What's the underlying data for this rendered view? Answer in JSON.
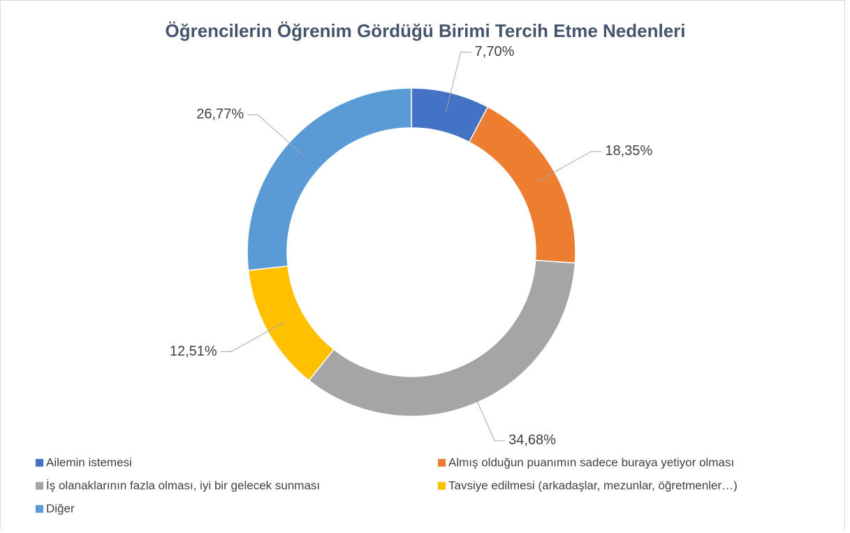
{
  "chart_data": {
    "type": "donut",
    "title": "Öğrencilerin Öğrenim Gördüğü Birimi Tercih Etme Nedenleri",
    "categories": [
      "Ailemin istemesi",
      "Almış olduğun puanımın sadece buraya yetiyor olması",
      "İş olanaklarının fazla olması, iyi bir gelecek sunması",
      "Tavsiye edilmesi (arkadaşlar, mezunlar, öğretmenler…)",
      "Diğer"
    ],
    "values": [
      7.7,
      18.35,
      34.68,
      12.51,
      26.77
    ],
    "value_labels": [
      "7,70%",
      "18,35%",
      "34,68%",
      "12,51%",
      "26,77%"
    ],
    "colors": [
      "#4472c4",
      "#ed7d31",
      "#a5a5a5",
      "#ffc000",
      "#5b9bd5"
    ]
  }
}
